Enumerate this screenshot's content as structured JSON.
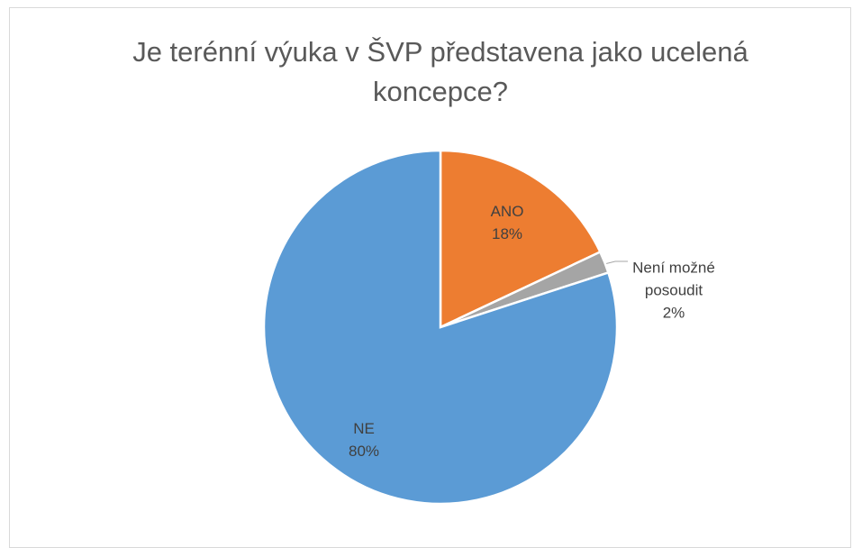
{
  "chart_data": {
    "type": "pie",
    "title": "Je terénní výuka v ŠVP představena jako ucelená koncepce?",
    "categories": [
      "ANO",
      "Není možné posoudit",
      "NE"
    ],
    "values": [
      18,
      2,
      80
    ],
    "value_labels": [
      "18%",
      "2%",
      "80%"
    ],
    "colors": [
      "#ed7d31",
      "#a5a5a5",
      "#5b9bd5"
    ]
  }
}
